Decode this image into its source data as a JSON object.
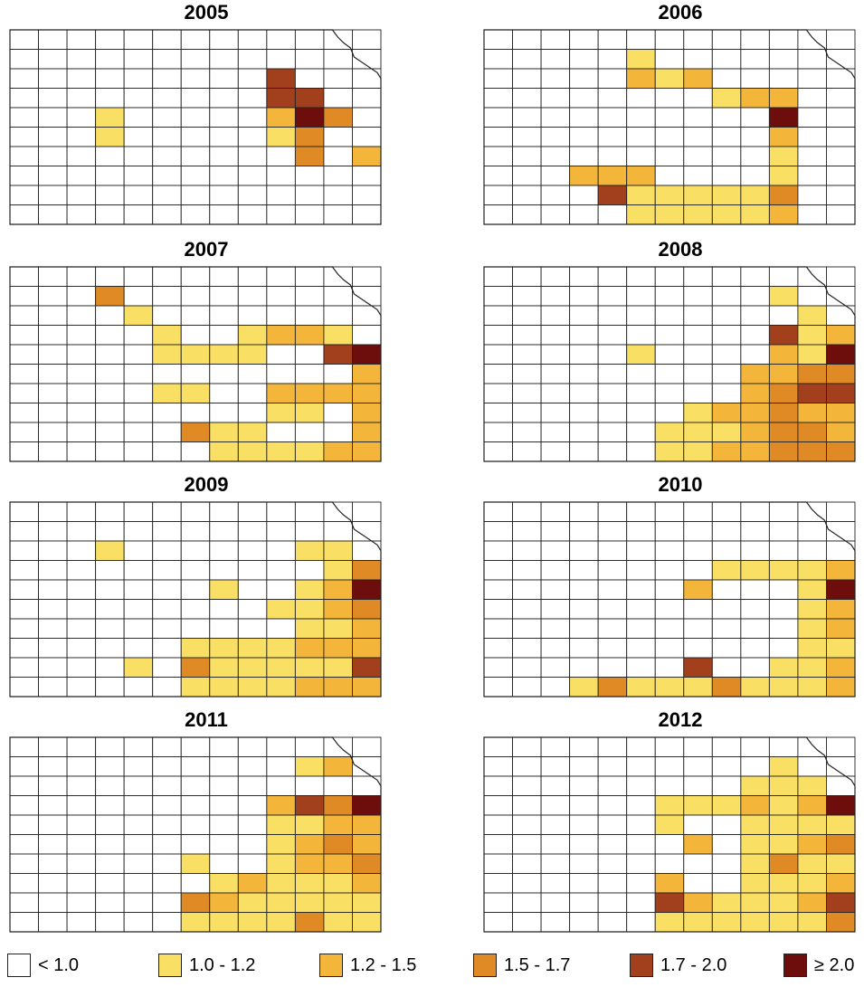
{
  "chart_data": {
    "type": "choropleth-map",
    "region": "Kansas counties",
    "legend": {
      "placement": "bottom",
      "classes": [
        {
          "label": "< 1.0",
          "color": "#ffffff"
        },
        {
          "label": "1.0 - 1.2",
          "color": "#f9df63"
        },
        {
          "label": "1.2 - 1.5",
          "color": "#f3b63a"
        },
        {
          "label": "1.5 - 1.7",
          "color": "#df8a25"
        },
        {
          "label": "1.7 - 2.0",
          "color": "#a2401d"
        },
        {
          "label": "≥ 2.0",
          "color": "#6e0e0c"
        }
      ]
    },
    "maps": [
      {
        "year": "2005",
        "shaded": [
          [
            9,
            2,
            4
          ],
          [
            9,
            3,
            4
          ],
          [
            10,
            3,
            4
          ],
          [
            10,
            4,
            5
          ],
          [
            9,
            4,
            2
          ],
          [
            9,
            5,
            1
          ],
          [
            10,
            5,
            3
          ],
          [
            10,
            6,
            3
          ],
          [
            12,
            6,
            2
          ],
          [
            11,
            4,
            3
          ],
          [
            3,
            5,
            1
          ],
          [
            3,
            4,
            1
          ]
        ]
      },
      {
        "year": "2006",
        "shaded": [
          [
            5,
            1,
            1
          ],
          [
            5,
            2,
            2
          ],
          [
            6,
            2,
            1
          ],
          [
            7,
            2,
            2
          ],
          [
            8,
            3,
            1
          ],
          [
            9,
            3,
            2
          ],
          [
            10,
            3,
            2
          ],
          [
            10,
            4,
            5
          ],
          [
            10,
            5,
            2
          ],
          [
            10,
            6,
            1
          ],
          [
            10,
            7,
            1
          ],
          [
            10,
            8,
            3
          ],
          [
            10,
            9,
            2
          ],
          [
            9,
            9,
            1
          ],
          [
            8,
            9,
            1
          ],
          [
            7,
            9,
            1
          ],
          [
            6,
            9,
            1
          ],
          [
            5,
            9,
            1
          ],
          [
            6,
            8,
            1
          ],
          [
            7,
            8,
            1
          ],
          [
            8,
            8,
            1
          ],
          [
            9,
            8,
            1
          ],
          [
            5,
            7,
            2
          ],
          [
            5,
            8,
            1
          ],
          [
            3,
            7,
            2
          ],
          [
            4,
            7,
            2
          ],
          [
            4,
            8,
            4
          ]
        ]
      },
      {
        "year": "2007",
        "shaded": [
          [
            3,
            1,
            3
          ],
          [
            4,
            2,
            1
          ],
          [
            5,
            3,
            1
          ],
          [
            5,
            4,
            1
          ],
          [
            6,
            4,
            1
          ],
          [
            7,
            4,
            1
          ],
          [
            8,
            3,
            1
          ],
          [
            8,
            4,
            1
          ],
          [
            9,
            3,
            2
          ],
          [
            10,
            3,
            2
          ],
          [
            11,
            3,
            1
          ],
          [
            11,
            4,
            4
          ],
          [
            12,
            4,
            5
          ],
          [
            12,
            5,
            2
          ],
          [
            12,
            6,
            2
          ],
          [
            12,
            7,
            2
          ],
          [
            12,
            8,
            2
          ],
          [
            12,
            9,
            2
          ],
          [
            11,
            9,
            2
          ],
          [
            10,
            9,
            1
          ],
          [
            9,
            9,
            1
          ],
          [
            8,
            9,
            1
          ],
          [
            7,
            9,
            1
          ],
          [
            7,
            8,
            1
          ],
          [
            8,
            8,
            1
          ],
          [
            9,
            7,
            1
          ],
          [
            10,
            7,
            1
          ],
          [
            9,
            6,
            2
          ],
          [
            10,
            6,
            2
          ],
          [
            11,
            6,
            2
          ],
          [
            6,
            8,
            3
          ],
          [
            5,
            6,
            1
          ],
          [
            6,
            6,
            1
          ]
        ]
      },
      {
        "year": "2008",
        "shaded": [
          [
            10,
            1,
            1
          ],
          [
            11,
            2,
            1
          ],
          [
            11,
            3,
            1
          ],
          [
            12,
            3,
            2
          ],
          [
            10,
            3,
            4
          ],
          [
            12,
            4,
            5
          ],
          [
            11,
            4,
            1
          ],
          [
            10,
            4,
            2
          ],
          [
            12,
            5,
            3
          ],
          [
            11,
            5,
            3
          ],
          [
            10,
            5,
            2
          ],
          [
            9,
            5,
            2
          ],
          [
            12,
            6,
            4
          ],
          [
            11,
            6,
            4
          ],
          [
            10,
            6,
            3
          ],
          [
            9,
            6,
            2
          ],
          [
            12,
            7,
            2
          ],
          [
            11,
            7,
            2
          ],
          [
            10,
            7,
            3
          ],
          [
            9,
            7,
            2
          ],
          [
            8,
            7,
            2
          ],
          [
            7,
            7,
            1
          ],
          [
            12,
            8,
            2
          ],
          [
            11,
            8,
            3
          ],
          [
            10,
            8,
            3
          ],
          [
            9,
            8,
            2
          ],
          [
            8,
            8,
            1
          ],
          [
            7,
            8,
            1
          ],
          [
            6,
            8,
            1
          ],
          [
            12,
            9,
            3
          ],
          [
            11,
            9,
            3
          ],
          [
            10,
            9,
            3
          ],
          [
            9,
            9,
            2
          ],
          [
            8,
            9,
            2
          ],
          [
            7,
            9,
            1
          ],
          [
            6,
            9,
            1
          ],
          [
            5,
            4,
            1
          ]
        ]
      },
      {
        "year": "2009",
        "shaded": [
          [
            3,
            2,
            1
          ],
          [
            10,
            2,
            1
          ],
          [
            11,
            2,
            1
          ],
          [
            11,
            3,
            1
          ],
          [
            12,
            3,
            3
          ],
          [
            12,
            4,
            5
          ],
          [
            11,
            4,
            2
          ],
          [
            10,
            4,
            1
          ],
          [
            12,
            5,
            3
          ],
          [
            11,
            5,
            2
          ],
          [
            10,
            5,
            1
          ],
          [
            9,
            5,
            1
          ],
          [
            12,
            6,
            2
          ],
          [
            11,
            6,
            1
          ],
          [
            10,
            6,
            1
          ],
          [
            12,
            7,
            2
          ],
          [
            11,
            7,
            2
          ],
          [
            10,
            7,
            2
          ],
          [
            9,
            7,
            1
          ],
          [
            8,
            7,
            1
          ],
          [
            7,
            7,
            1
          ],
          [
            12,
            8,
            4
          ],
          [
            11,
            8,
            1
          ],
          [
            10,
            8,
            1
          ],
          [
            9,
            8,
            1
          ],
          [
            8,
            8,
            1
          ],
          [
            7,
            8,
            1
          ],
          [
            12,
            9,
            2
          ],
          [
            11,
            9,
            2
          ],
          [
            10,
            9,
            2
          ],
          [
            9,
            9,
            1
          ],
          [
            8,
            9,
            1
          ],
          [
            7,
            9,
            1
          ],
          [
            6,
            9,
            1
          ],
          [
            6,
            8,
            3
          ],
          [
            6,
            7,
            1
          ],
          [
            7,
            4,
            1
          ],
          [
            4,
            8,
            1
          ]
        ]
      },
      {
        "year": "2010",
        "shaded": [
          [
            8,
            3,
            1
          ],
          [
            9,
            3,
            1
          ],
          [
            10,
            3,
            1
          ],
          [
            11,
            3,
            1
          ],
          [
            12,
            3,
            2
          ],
          [
            12,
            4,
            5
          ],
          [
            11,
            4,
            1
          ],
          [
            12,
            5,
            2
          ],
          [
            11,
            5,
            1
          ],
          [
            12,
            6,
            2
          ],
          [
            11,
            6,
            1
          ],
          [
            12,
            7,
            1
          ],
          [
            11,
            7,
            1
          ],
          [
            12,
            8,
            2
          ],
          [
            11,
            8,
            1
          ],
          [
            10,
            8,
            1
          ],
          [
            12,
            9,
            2
          ],
          [
            11,
            9,
            1
          ],
          [
            10,
            9,
            1
          ],
          [
            9,
            9,
            1
          ],
          [
            8,
            9,
            3
          ],
          [
            7,
            9,
            1
          ],
          [
            6,
            9,
            1
          ],
          [
            5,
            9,
            1
          ],
          [
            4,
            9,
            3
          ],
          [
            3,
            9,
            1
          ],
          [
            7,
            8,
            4
          ],
          [
            7,
            4,
            2
          ]
        ]
      },
      {
        "year": "2011",
        "shaded": [
          [
            10,
            1,
            1
          ],
          [
            11,
            1,
            2
          ],
          [
            9,
            3,
            2
          ],
          [
            10,
            3,
            4
          ],
          [
            11,
            3,
            3
          ],
          [
            12,
            3,
            5
          ],
          [
            11,
            4,
            2
          ],
          [
            12,
            4,
            2
          ],
          [
            10,
            4,
            1
          ],
          [
            9,
            4,
            1
          ],
          [
            12,
            5,
            2
          ],
          [
            11,
            5,
            3
          ],
          [
            10,
            5,
            2
          ],
          [
            9,
            5,
            1
          ],
          [
            12,
            6,
            3
          ],
          [
            11,
            6,
            2
          ],
          [
            10,
            6,
            2
          ],
          [
            9,
            6,
            1
          ],
          [
            12,
            7,
            2
          ],
          [
            11,
            7,
            1
          ],
          [
            10,
            7,
            1
          ],
          [
            9,
            7,
            1
          ],
          [
            8,
            7,
            2
          ],
          [
            7,
            7,
            1
          ],
          [
            12,
            8,
            1
          ],
          [
            11,
            8,
            1
          ],
          [
            10,
            8,
            1
          ],
          [
            9,
            8,
            1
          ],
          [
            8,
            8,
            1
          ],
          [
            7,
            8,
            2
          ],
          [
            6,
            8,
            3
          ],
          [
            12,
            9,
            1
          ],
          [
            11,
            9,
            1
          ],
          [
            10,
            9,
            3
          ],
          [
            9,
            9,
            1
          ],
          [
            8,
            9,
            1
          ],
          [
            7,
            9,
            1
          ],
          [
            6,
            9,
            1
          ],
          [
            6,
            6,
            1
          ]
        ]
      },
      {
        "year": "2012",
        "shaded": [
          [
            10,
            1,
            1
          ],
          [
            9,
            2,
            1
          ],
          [
            10,
            2,
            1
          ],
          [
            11,
            2,
            1
          ],
          [
            12,
            3,
            5
          ],
          [
            11,
            3,
            2
          ],
          [
            10,
            3,
            1
          ],
          [
            9,
            3,
            2
          ],
          [
            8,
            3,
            1
          ],
          [
            7,
            3,
            1
          ],
          [
            6,
            3,
            1
          ],
          [
            12,
            4,
            1
          ],
          [
            11,
            4,
            1
          ],
          [
            10,
            4,
            1
          ],
          [
            9,
            4,
            1
          ],
          [
            12,
            5,
            3
          ],
          [
            11,
            5,
            2
          ],
          [
            10,
            5,
            1
          ],
          [
            9,
            5,
            1
          ],
          [
            12,
            6,
            1
          ],
          [
            11,
            6,
            1
          ],
          [
            10,
            6,
            3
          ],
          [
            9,
            6,
            1
          ],
          [
            12,
            7,
            2
          ],
          [
            11,
            7,
            1
          ],
          [
            10,
            7,
            1
          ],
          [
            9,
            7,
            1
          ],
          [
            12,
            8,
            4
          ],
          [
            11,
            8,
            2
          ],
          [
            10,
            8,
            1
          ],
          [
            9,
            8,
            1
          ],
          [
            8,
            8,
            1
          ],
          [
            7,
            8,
            2
          ],
          [
            6,
            8,
            4
          ],
          [
            12,
            9,
            3
          ],
          [
            11,
            9,
            1
          ],
          [
            10,
            9,
            1
          ],
          [
            9,
            9,
            1
          ],
          [
            8,
            9,
            1
          ],
          [
            7,
            9,
            1
          ],
          [
            6,
            9,
            1
          ],
          [
            6,
            7,
            2
          ],
          [
            7,
            5,
            2
          ],
          [
            6,
            4,
            1
          ]
        ]
      }
    ]
  }
}
